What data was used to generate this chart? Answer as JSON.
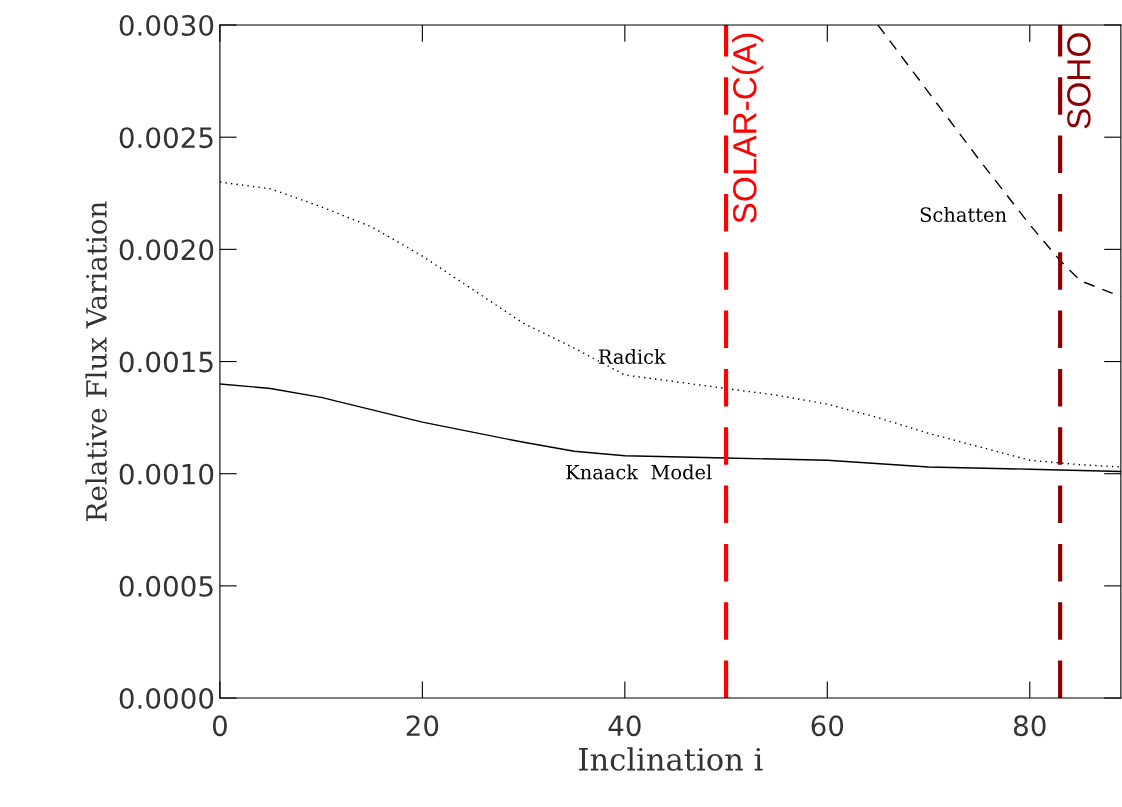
{
  "chart_data": {
    "type": "line",
    "xlabel": "Inclination i",
    "ylabel": "Relative Flux Variation",
    "xlim": [
      0,
      89
    ],
    "xticks": [
      0,
      20,
      40,
      60,
      80
    ],
    "ylim": [
      0,
      0.003
    ],
    "yticks": [
      {
        "value": 0,
        "label": "0.0000"
      },
      {
        "value": 0.0005,
        "label": "0.0005"
      },
      {
        "value": 0.001,
        "label": "0.0010"
      },
      {
        "value": 0.0015,
        "label": "0.0015"
      },
      {
        "value": 0.002,
        "label": "0.0020"
      },
      {
        "value": 0.0025,
        "label": "0.0025"
      },
      {
        "value": 0.003,
        "label": "0.0030"
      }
    ],
    "grid": false,
    "legend": false,
    "series": [
      {
        "name": "Knaack  Model",
        "color": "#000000",
        "line_style": "solid",
        "x": [
          0,
          5,
          10,
          20,
          30,
          35,
          40,
          50,
          60,
          70,
          80,
          89
        ],
        "values": [
          0.0014,
          0.00138,
          0.00134,
          0.00123,
          0.00114,
          0.0011,
          0.00108,
          0.00107,
          0.00106,
          0.00103,
          0.00102,
          0.00101
        ]
      },
      {
        "name": "Radick",
        "color": "#000000",
        "line_style": "dotted",
        "x": [
          0,
          5,
          10,
          15,
          20,
          25,
          30,
          35,
          40,
          45,
          50,
          55,
          60,
          65,
          70,
          75,
          80,
          85,
          89
        ],
        "values": [
          0.0023,
          0.00227,
          0.00219,
          0.0021,
          0.00197,
          0.00182,
          0.00167,
          0.00156,
          0.00144,
          0.00141,
          0.00138,
          0.00135,
          0.00131,
          0.00125,
          0.00118,
          0.00112,
          0.00106,
          0.00104,
          0.00103
        ]
      },
      {
        "name": "Schatten",
        "color": "#000000",
        "line_style": "dashed",
        "x": [
          65,
          70,
          75,
          80,
          83,
          85,
          89
        ],
        "values": [
          0.003,
          0.0027,
          0.0024,
          0.00211,
          0.00195,
          0.00186,
          0.00179
        ]
      }
    ],
    "ref_lines": [
      {
        "axis": "x",
        "value": 50,
        "label": "SOLAR-C(A)",
        "color": "#ff0000",
        "line_style": "dashed"
      },
      {
        "axis": "x",
        "value": 83,
        "label": "SOHO",
        "color": "#8b0000",
        "line_style": "dashed"
      }
    ]
  }
}
